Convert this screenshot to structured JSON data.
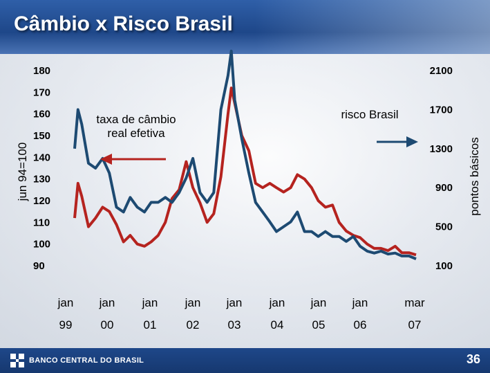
{
  "header": {
    "title": "Câmbio x Risco Brasil"
  },
  "footer": {
    "logo_text": "BANCO CENTRAL DO BRASIL",
    "page_number": "36"
  },
  "colors": {
    "header_blue": "#1e4789",
    "series_red": "#b5231f",
    "series_blue": "#1d4a72",
    "arrow_red": "#b5231f"
  },
  "icons": {
    "logo": "bcb-logo-icon",
    "arrow": "arrow-left-icon"
  },
  "chart_data": {
    "type": "line",
    "title": "Câmbio x Risco Brasil",
    "y_left": {
      "label": "jun 94=100",
      "ticks": [
        "180",
        "170",
        "160",
        "150",
        "140",
        "130",
        "120",
        "110",
        "100",
        "90"
      ],
      "range": [
        90,
        180
      ]
    },
    "y_right": {
      "label": "pontos básicos",
      "ticks": [
        "2100",
        "1700",
        "1300",
        "900",
        "500",
        "100"
      ],
      "range": [
        100,
        2100
      ]
    },
    "x_ticks": [
      {
        "month": "jan",
        "year": "99"
      },
      {
        "month": "jan",
        "year": "00"
      },
      {
        "month": "jan",
        "year": "01"
      },
      {
        "month": "jan",
        "year": "02"
      },
      {
        "month": "jan",
        "year": "03"
      },
      {
        "month": "jan",
        "year": "04"
      },
      {
        "month": "jan",
        "year": "05"
      },
      {
        "month": "jan",
        "year": "06"
      },
      {
        "month": "mar",
        "year": "07"
      }
    ],
    "x_range": [
      1999.0,
      2007.17
    ],
    "annotations": {
      "fx_label_line1": "taxa de câmbio",
      "fx_label_line2": "real efetiva",
      "risk_label": "risco Brasil"
    },
    "series": [
      {
        "name": "taxa de câmbio real efetiva",
        "axis": "left",
        "color": "#b5231f",
        "points": [
          [
            1999.0,
            112
          ],
          [
            1999.08,
            128
          ],
          [
            1999.17,
            122
          ],
          [
            1999.33,
            108
          ],
          [
            1999.5,
            112
          ],
          [
            1999.67,
            117
          ],
          [
            1999.83,
            115
          ],
          [
            2000.0,
            109
          ],
          [
            2000.17,
            101
          ],
          [
            2000.33,
            104
          ],
          [
            2000.5,
            100
          ],
          [
            2000.67,
            99
          ],
          [
            2000.83,
            101
          ],
          [
            2001.0,
            104
          ],
          [
            2001.17,
            110
          ],
          [
            2001.33,
            121
          ],
          [
            2001.5,
            125
          ],
          [
            2001.67,
            138
          ],
          [
            2001.83,
            126
          ],
          [
            2002.0,
            119
          ],
          [
            2002.17,
            110
          ],
          [
            2002.33,
            114
          ],
          [
            2002.5,
            131
          ],
          [
            2002.67,
            160
          ],
          [
            2002.75,
            172
          ],
          [
            2002.83,
            165
          ],
          [
            2003.0,
            150
          ],
          [
            2003.17,
            143
          ],
          [
            2003.33,
            128
          ],
          [
            2003.5,
            126
          ],
          [
            2003.67,
            128
          ],
          [
            2003.83,
            126
          ],
          [
            2004.0,
            124
          ],
          [
            2004.17,
            126
          ],
          [
            2004.33,
            132
          ],
          [
            2004.5,
            130
          ],
          [
            2004.67,
            126
          ],
          [
            2004.83,
            120
          ],
          [
            2005.0,
            117
          ],
          [
            2005.17,
            118
          ],
          [
            2005.33,
            110
          ],
          [
            2005.5,
            106
          ],
          [
            2005.67,
            104
          ],
          [
            2005.83,
            103
          ],
          [
            2006.0,
            100
          ],
          [
            2006.17,
            98
          ],
          [
            2006.33,
            98
          ],
          [
            2006.5,
            97
          ],
          [
            2006.67,
            99
          ],
          [
            2006.83,
            96
          ],
          [
            2007.0,
            96
          ],
          [
            2007.17,
            95
          ]
        ]
      },
      {
        "name": "risco Brasil",
        "axis": "right",
        "color": "#1d4a72",
        "points": [
          [
            1999.0,
            1300
          ],
          [
            1999.08,
            1700
          ],
          [
            1999.17,
            1550
          ],
          [
            1999.33,
            1150
          ],
          [
            1999.5,
            1100
          ],
          [
            1999.67,
            1200
          ],
          [
            1999.83,
            1050
          ],
          [
            2000.0,
            700
          ],
          [
            2000.17,
            650
          ],
          [
            2000.33,
            800
          ],
          [
            2000.5,
            700
          ],
          [
            2000.67,
            650
          ],
          [
            2000.83,
            750
          ],
          [
            2001.0,
            750
          ],
          [
            2001.17,
            800
          ],
          [
            2001.33,
            750
          ],
          [
            2001.5,
            850
          ],
          [
            2001.67,
            1000
          ],
          [
            2001.83,
            1200
          ],
          [
            2002.0,
            850
          ],
          [
            2002.17,
            750
          ],
          [
            2002.33,
            850
          ],
          [
            2002.5,
            1700
          ],
          [
            2002.67,
            2050
          ],
          [
            2002.75,
            2300
          ],
          [
            2002.83,
            1800
          ],
          [
            2003.0,
            1400
          ],
          [
            2003.17,
            1050
          ],
          [
            2003.33,
            750
          ],
          [
            2003.5,
            650
          ],
          [
            2003.67,
            550
          ],
          [
            2003.83,
            450
          ],
          [
            2004.0,
            500
          ],
          [
            2004.17,
            550
          ],
          [
            2004.33,
            650
          ],
          [
            2004.5,
            450
          ],
          [
            2004.67,
            450
          ],
          [
            2004.83,
            400
          ],
          [
            2005.0,
            450
          ],
          [
            2005.17,
            400
          ],
          [
            2005.33,
            400
          ],
          [
            2005.5,
            350
          ],
          [
            2005.67,
            400
          ],
          [
            2005.83,
            300
          ],
          [
            2006.0,
            250
          ],
          [
            2006.17,
            230
          ],
          [
            2006.33,
            250
          ],
          [
            2006.5,
            220
          ],
          [
            2006.67,
            230
          ],
          [
            2006.83,
            200
          ],
          [
            2007.0,
            200
          ],
          [
            2007.17,
            170
          ]
        ]
      }
    ]
  }
}
